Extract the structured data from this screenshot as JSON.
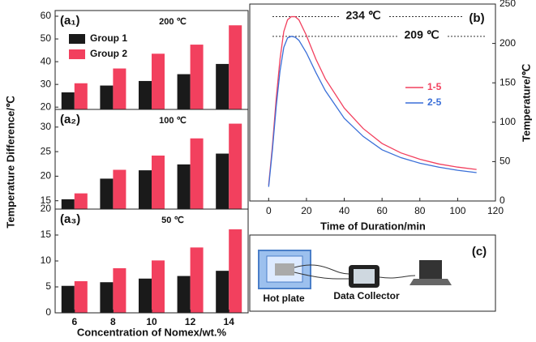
{
  "chart_data": [
    {
      "type": "bar",
      "label": "(a₁)",
      "annotation": "200 ℃",
      "categories": [
        "6",
        "8",
        "10",
        "12",
        "14"
      ],
      "series": [
        {
          "name": "Group 1",
          "color": "#1a1a1a",
          "values": [
            26.5,
            29.5,
            31.5,
            34.5,
            39
          ]
        },
        {
          "name": "Group 2",
          "color": "#f2405e",
          "values": [
            30.5,
            37,
            43.5,
            47.5,
            56
          ]
        }
      ],
      "ylim": [
        19,
        62.5
      ],
      "yticks": [
        20,
        30,
        40,
        50,
        60
      ],
      "legend": "top-left"
    },
    {
      "type": "bar",
      "label": "(a₂)",
      "annotation": "100 ℃",
      "y_label": "Temperature Difference/℃",
      "categories": [
        "6",
        "8",
        "10",
        "12",
        "14"
      ],
      "series": [
        {
          "color": "#1a1a1a",
          "values": [
            15.3,
            19.5,
            21.2,
            22.4,
            24.6
          ]
        },
        {
          "color": "#f2405e",
          "values": [
            16.5,
            21.3,
            24.2,
            27.7,
            30.7
          ]
        }
      ],
      "ylim": [
        13.3,
        33.6
      ],
      "yticks": [
        15,
        20,
        25,
        30
      ]
    },
    {
      "type": "bar",
      "label": "(a₃)",
      "annotation": "50 ℃",
      "x_label": "Concentration of Nomex/wt.%",
      "categories": [
        "6",
        "8",
        "10",
        "12",
        "14"
      ],
      "series": [
        {
          "color": "#1a1a1a",
          "values": [
            5.2,
            5.9,
            6.6,
            7.1,
            8.1
          ]
        },
        {
          "color": "#f2405e",
          "values": [
            6.1,
            8.6,
            10.1,
            12.6,
            16.1
          ]
        }
      ],
      "ylim": [
        0,
        20
      ],
      "yticks": [
        0,
        5,
        10,
        15,
        20
      ]
    },
    {
      "type": "line",
      "label": "(b)",
      "x_label": "Time of Duration/min",
      "y_label": "Temperature/℃",
      "x": [
        0,
        2,
        4,
        6,
        8,
        10,
        12,
        14,
        16,
        20,
        25,
        30,
        40,
        50,
        60,
        70,
        80,
        90,
        100,
        110
      ],
      "series": [
        {
          "name": "1-5",
          "color": "#f2405e",
          "axis": "y2",
          "values": [
            20,
            70,
            130,
            180,
            215,
            230,
            234,
            234,
            230,
            210,
            180,
            155,
            118,
            92,
            73,
            61,
            53,
            47,
            43,
            40
          ]
        },
        {
          "name": "2-5",
          "color": "#3a6fd8",
          "axis": "y2",
          "values": [
            18,
            65,
            120,
            165,
            195,
            207,
            209,
            208,
            204,
            188,
            163,
            140,
            105,
            82,
            65,
            55,
            48,
            43,
            39,
            36
          ]
        }
      ],
      "xlim": [
        -10,
        120
      ],
      "xticks": [
        0,
        20,
        40,
        60,
        80,
        100,
        120
      ],
      "y2lim": [
        0,
        250
      ],
      "y2ticks": [
        0,
        50,
        100,
        150,
        200,
        250
      ],
      "annotations": [
        {
          "label": "234 ℃",
          "value": 234
        },
        {
          "label": "209 ℃",
          "value": 209
        }
      ]
    }
  ],
  "diagram": {
    "label": "(c)",
    "nodes": [
      {
        "label": "Hot plate"
      },
      {
        "label": "Data Collector"
      }
    ]
  }
}
